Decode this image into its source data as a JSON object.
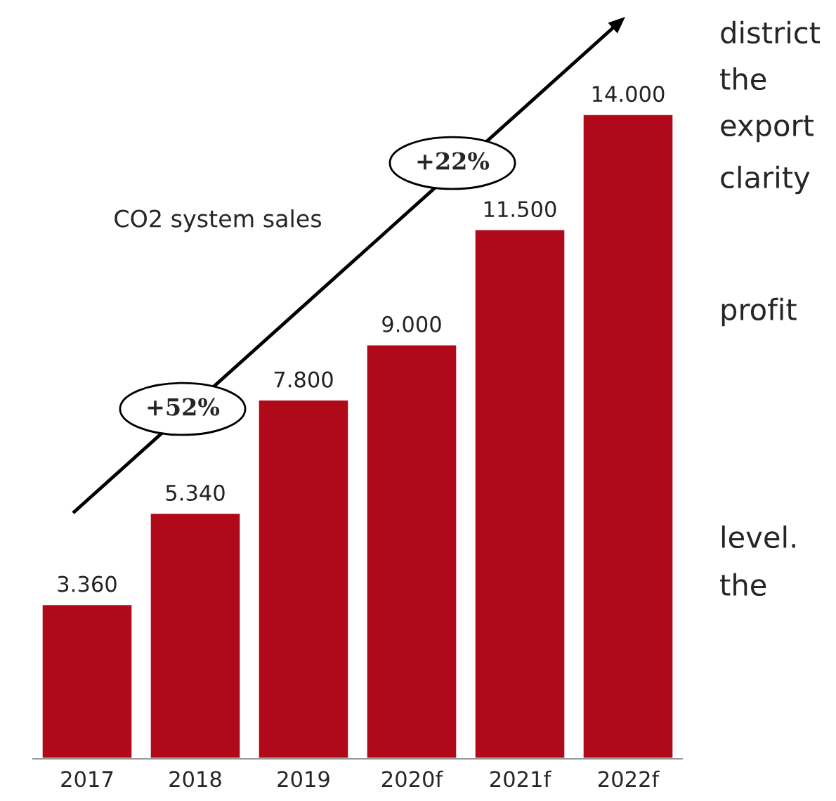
{
  "chart_data": {
    "type": "bar",
    "categories": [
      "2017",
      "2018",
      "2019",
      "2020f",
      "2021f",
      "2022f"
    ],
    "values": [
      3360,
      5340,
      7800,
      9000,
      11500,
      14000
    ],
    "value_labels": [
      "3.360",
      "5.340",
      "7.800",
      "9.000",
      "11.500",
      "14.000"
    ],
    "color": "#b0091a",
    "annotations": [
      "CO2 system sales",
      "+52%",
      "+22%",
      "district",
      "the",
      "export",
      "clarity",
      "profit",
      "level.",
      "the"
    ]
  }
}
